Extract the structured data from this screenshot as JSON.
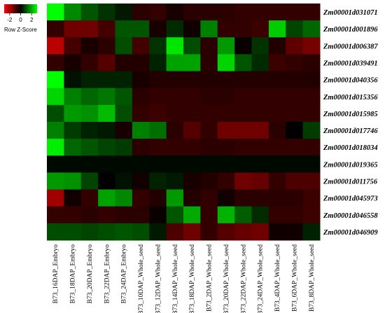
{
  "chart_data": {
    "type": "heatmap",
    "title": "",
    "xlabel": "",
    "ylabel": "",
    "legend": {
      "title": "Row Z-Score",
      "ticks": [
        "-2",
        "0",
        "2"
      ],
      "range": [
        -3,
        3
      ],
      "placement": "top-left",
      "colors": {
        "low": "#ff0000",
        "mid": "#000000",
        "high": "#00ff00"
      }
    },
    "columns": [
      "B73_16DAP_Embryo",
      "B73_18DAP_Embryo",
      "B73_20DAP_Embryo",
      "B73_22DAP_Embryo",
      "B73_24DAP_Embryo",
      "B73_10DAP_Whole_seed",
      "B73_12DAP_Whole_seed",
      "B73_14DAP_Whole_seed",
      "B73_18DAP_Whole_seed",
      "B73_2DAP_Whole_seed",
      "B73_20DAP_Whole_seed",
      "B73_22DAP_Whole_seed",
      "B73_24DAP_Whole_seed",
      "B73_4DAP_Whole_seed",
      "B73_6DAP_Whole_seed",
      "B73_8DAP_Whole_seed"
    ],
    "rows": [
      "Zm00001d031071",
      "Zm00001d001896",
      "Zm00001d006387",
      "Zm00001d039491",
      "Zm00001d040356",
      "Zm00001d015356",
      "Zm00001d015985",
      "Zm00001d017746",
      "Zm00001d018034",
      "Zm00001d019365",
      "Zm00001d011756",
      "Zm00001d045973",
      "Zm00001d046558",
      "Zm00001d046909"
    ],
    "values": [
      [
        3.0,
        1.6,
        1.0,
        0.6,
        0.3,
        -0.5,
        -0.6,
        -0.3,
        -0.5,
        -0.5,
        -0.5,
        -0.6,
        -0.6,
        -0.6,
        -0.6,
        -0.6
      ],
      [
        -0.6,
        -1.3,
        -1.3,
        -0.8,
        1.0,
        1.0,
        -0.3,
        0.5,
        -0.2,
        1.5,
        -0.6,
        -0.6,
        -0.7,
        2.4,
        0.8,
        1.2
      ],
      [
        -2.2,
        -0.8,
        -0.3,
        -0.5,
        0.9,
        -0.8,
        0.6,
        2.7,
        0.9,
        -0.5,
        1.8,
        -0.1,
        0.6,
        -0.4,
        -1.1,
        -1.4
      ],
      [
        -0.6,
        -0.3,
        -0.6,
        -1.0,
        -0.4,
        -0.4,
        0.4,
        1.9,
        1.9,
        -0.5,
        2.5,
        1.0,
        0.5,
        -0.7,
        -0.6,
        -0.5
      ],
      [
        3.0,
        0.2,
        0.4,
        0.4,
        0.4,
        -0.3,
        -0.4,
        -0.4,
        -0.4,
        -0.4,
        -0.4,
        -0.4,
        -0.4,
        -0.4,
        -0.4,
        -0.4
      ],
      [
        2.5,
        1.5,
        1.2,
        1.4,
        1.0,
        -0.5,
        -0.6,
        -0.6,
        -0.6,
        -0.5,
        -0.5,
        -0.6,
        -0.6,
        -0.6,
        -0.6,
        -0.6
      ],
      [
        0.9,
        1.8,
        1.7,
        2.2,
        0.9,
        -0.6,
        -0.7,
        -0.6,
        -0.6,
        -0.6,
        -0.6,
        -0.6,
        -0.6,
        -0.6,
        -0.6,
        -0.6
      ],
      [
        1.5,
        0.7,
        0.4,
        0.3,
        -0.3,
        1.5,
        1.3,
        -0.5,
        -1.0,
        -0.6,
        -1.3,
        -1.3,
        -1.3,
        -0.5,
        0.0,
        0.7
      ],
      [
        2.8,
        1.2,
        1.0,
        0.8,
        0.7,
        -0.5,
        -0.6,
        -0.6,
        -0.6,
        -0.5,
        -0.5,
        -0.6,
        -0.6,
        -0.6,
        -0.6,
        -0.6
      ],
      [
        0.1,
        0.1,
        0.1,
        0.1,
        0.1,
        0.1,
        0.1,
        0.1,
        0.1,
        0.1,
        0.1,
        0.1,
        0.1,
        0.1,
        0.1,
        0.1
      ],
      [
        1.8,
        1.7,
        0.8,
        0.0,
        0.2,
        -0.2,
        0.4,
        0.3,
        -0.3,
        -0.4,
        -0.6,
        -1.3,
        -1.2,
        -0.6,
        -0.9,
        -0.9
      ],
      [
        -1.9,
        -0.2,
        -0.6,
        1.9,
        1.6,
        -0.6,
        -0.4,
        1.8,
        -0.4,
        -0.6,
        -0.2,
        -0.5,
        -0.5,
        -0.5,
        -0.5,
        -0.7
      ],
      [
        -0.6,
        -0.6,
        -0.5,
        -0.6,
        -0.5,
        -0.5,
        -0.1,
        1.0,
        2.0,
        -0.6,
        2.1,
        1.1,
        0.5,
        -0.6,
        -0.6,
        -0.7
      ],
      [
        0.9,
        0.9,
        0.8,
        0.9,
        1.0,
        0.9,
        0.3,
        -0.9,
        -1.3,
        -0.6,
        -1.0,
        -1.2,
        -1.3,
        -0.2,
        -0.2,
        0.4
      ]
    ]
  }
}
